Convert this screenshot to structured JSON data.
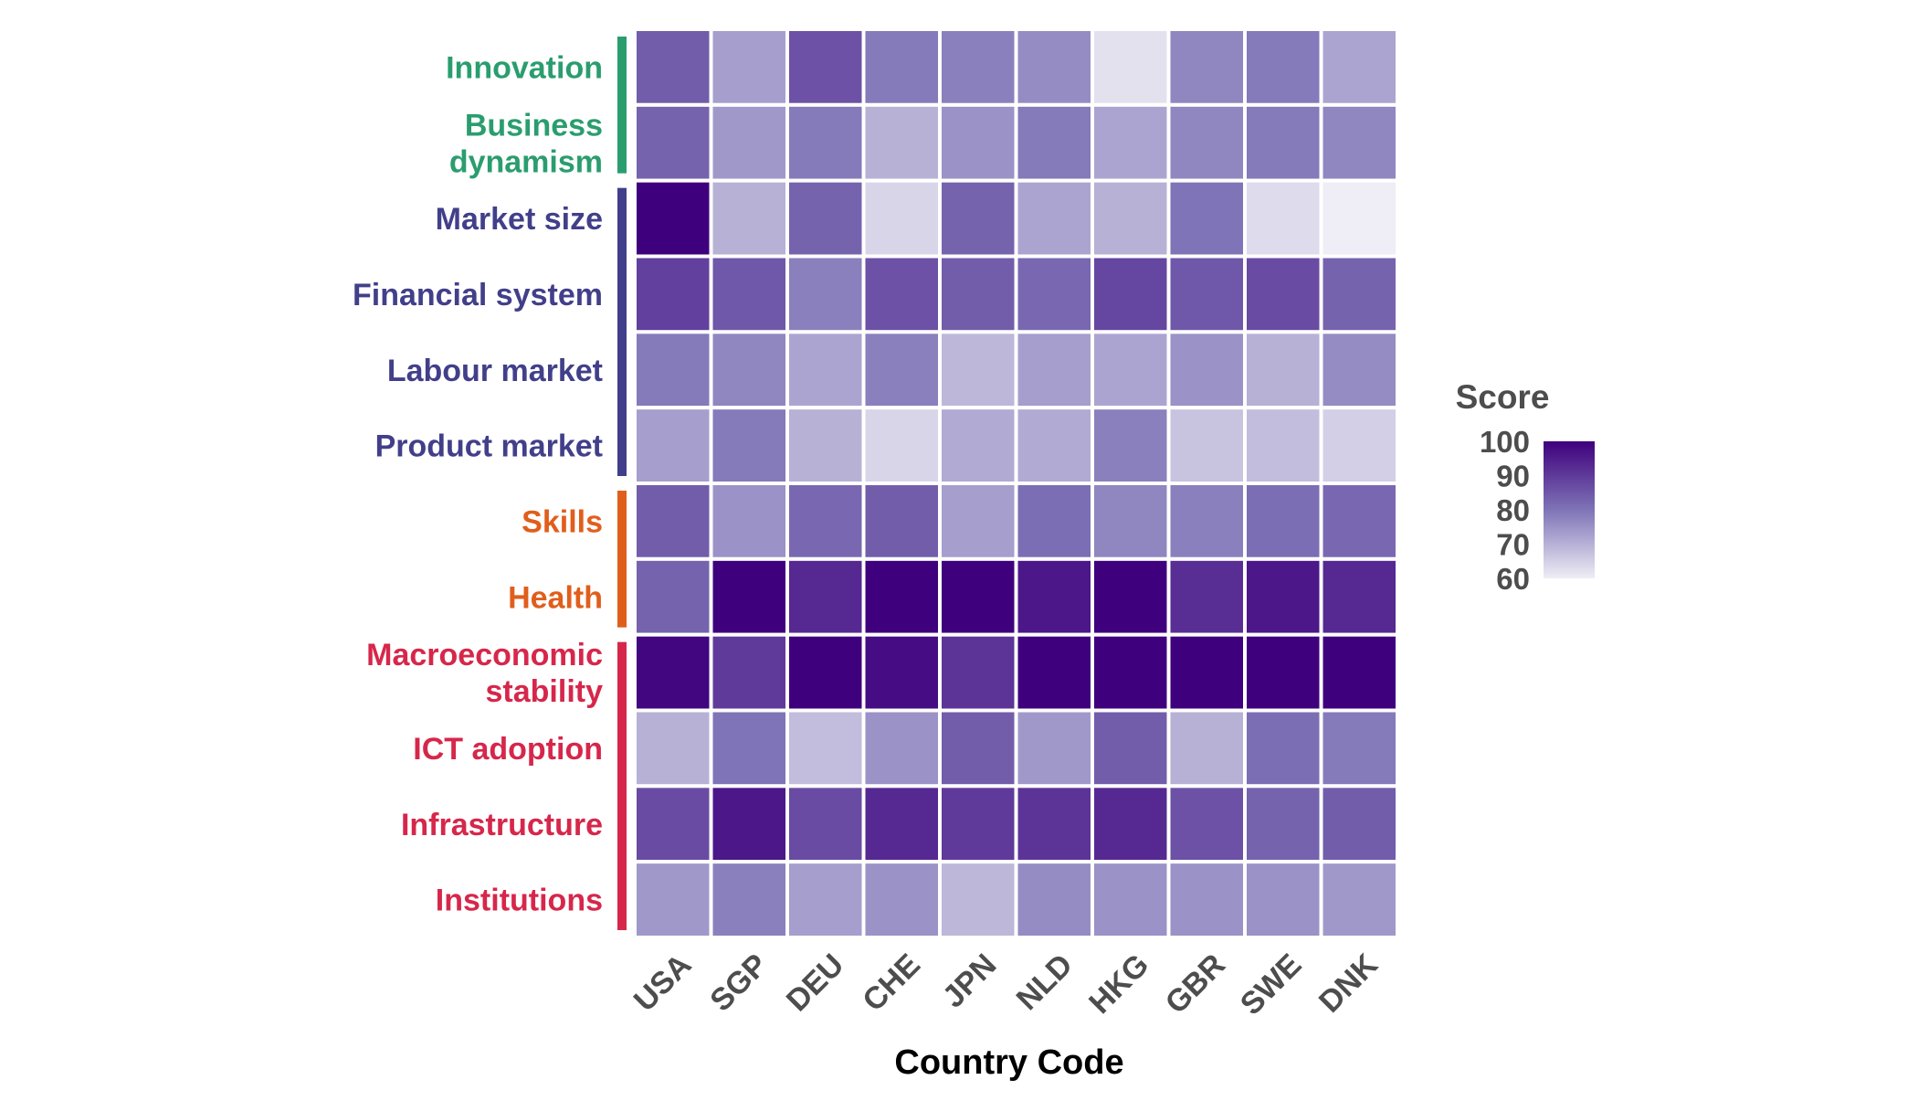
{
  "chart_data": {
    "type": "heatmap",
    "title": "",
    "xlabel": "Country Code",
    "ylabel": "",
    "x": [
      "USA",
      "SGP",
      "DEU",
      "CHE",
      "JPN",
      "NLD",
      "HKG",
      "GBR",
      "SWE",
      "DNK"
    ],
    "y": [
      "Innovation",
      "Business\ndynamism",
      "Market size",
      "Financial system",
      "Labour market",
      "Product market",
      "Skills",
      "Health",
      "Macroeconomic\nstability",
      "ICT adoption",
      "Infrastructure",
      "Institutions"
    ],
    "values": [
      [
        84,
        73,
        86,
        79,
        78,
        76,
        62,
        77,
        79,
        72
      ],
      [
        83,
        74,
        79,
        70,
        75,
        79,
        72,
        77,
        79,
        77
      ],
      [
        100,
        70,
        83,
        64,
        83,
        72,
        70,
        80,
        63,
        60
      ],
      [
        89,
        85,
        78,
        86,
        84,
        82,
        88,
        85,
        87,
        83
      ],
      [
        79,
        77,
        72,
        78,
        69,
        73,
        72,
        75,
        70,
        76
      ],
      [
        73,
        79,
        70,
        64,
        71,
        71,
        78,
        67,
        68,
        65
      ],
      [
        84,
        75,
        82,
        84,
        73,
        81,
        77,
        78,
        81,
        82
      ],
      [
        83,
        100,
        93,
        100,
        100,
        96,
        100,
        92,
        96,
        93
      ],
      [
        99,
        90,
        100,
        98,
        91,
        100,
        100,
        100,
        100,
        100
      ],
      [
        70,
        80,
        68,
        75,
        84,
        74,
        84,
        70,
        81,
        79
      ],
      [
        87,
        96,
        87,
        93,
        90,
        91,
        93,
        86,
        83,
        84
      ],
      [
        74,
        78,
        73,
        75,
        69,
        76,
        75,
        75,
        75,
        74
      ]
    ],
    "color_scale": {
      "min": 60,
      "max": 100,
      "low_color": "#efedf5",
      "mid_color": "#7f74b7",
      "high_color": "#3f007d"
    },
    "groups": [
      {
        "rows": [
          0,
          1
        ],
        "color": "#2a9d6e"
      },
      {
        "rows": [
          2,
          3,
          4,
          5
        ],
        "color": "#423f8a"
      },
      {
        "rows": [
          6,
          7
        ],
        "color": "#e05e1c"
      },
      {
        "rows": [
          8,
          9,
          10,
          11
        ],
        "color": "#d6274b"
      }
    ],
    "legend": {
      "title": "Score",
      "ticks": [
        60,
        70,
        80,
        90,
        100
      ],
      "placement": "right"
    },
    "grid": false
  }
}
